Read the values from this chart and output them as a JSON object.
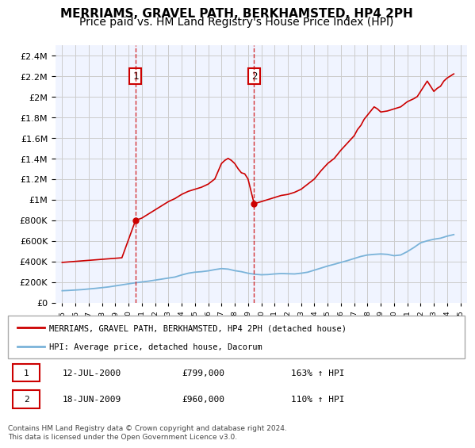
{
  "title": "MERRIAMS, GRAVEL PATH, BERKHAMSTED, HP4 2PH",
  "subtitle": "Price paid vs. HM Land Registry's House Price Index (HPI)",
  "title_fontsize": 11,
  "subtitle_fontsize": 10,
  "background_color": "#ffffff",
  "plot_bg_color": "#f0f4ff",
  "grid_color": "#cccccc",
  "red_line_color": "#cc0000",
  "blue_line_color": "#7ab3d9",
  "annotation_box_color": "#cc0000",
  "dashed_line_color": "#cc0000",
  "sale1_x": 2000.53,
  "sale1_y": 799000,
  "sale1_label": "1",
  "sale1_date": "12-JUL-2000",
  "sale1_price": "£799,000",
  "sale1_hpi": "163% ↑ HPI",
  "sale2_x": 2009.46,
  "sale2_y": 960000,
  "sale2_label": "2",
  "sale2_date": "18-JUN-2009",
  "sale2_price": "£960,000",
  "sale2_hpi": "110% ↑ HPI",
  "legend_line1": "MERRIAMS, GRAVEL PATH, BERKHAMSTED, HP4 2PH (detached house)",
  "legend_line2": "HPI: Average price, detached house, Dacorum",
  "footer": "Contains HM Land Registry data © Crown copyright and database right 2024.\nThis data is licensed under the Open Government Licence v3.0.",
  "ylim": [
    0,
    2500000
  ],
  "yticks": [
    0,
    200000,
    400000,
    600000,
    800000,
    1000000,
    1200000,
    1400000,
    1600000,
    1800000,
    2000000,
    2200000,
    2400000
  ],
  "xlim": [
    1994.5,
    2025.5
  ],
  "xticks": [
    1995,
    1996,
    1997,
    1998,
    1999,
    2000,
    2001,
    2002,
    2003,
    2004,
    2005,
    2006,
    2007,
    2008,
    2009,
    2010,
    2011,
    2012,
    2013,
    2014,
    2015,
    2016,
    2017,
    2018,
    2019,
    2020,
    2021,
    2022,
    2023,
    2024,
    2025
  ],
  "red_x": [
    1995,
    1995.5,
    1996,
    1996.5,
    1997,
    1997.5,
    1998,
    1998.5,
    1999,
    1999.5,
    2000.53,
    2001,
    2001.5,
    2002,
    2002.5,
    2003,
    2003.5,
    2004,
    2004.5,
    2005,
    2005.5,
    2006,
    2006.5,
    2007,
    2007.25,
    2007.5,
    2007.75,
    2008,
    2008.25,
    2008.5,
    2008.75,
    2009,
    2009.46,
    2010,
    2010.5,
    2011,
    2011.5,
    2012,
    2012.5,
    2013,
    2013.5,
    2014,
    2014.5,
    2015,
    2015.5,
    2016,
    2016.5,
    2017,
    2017.25,
    2017.5,
    2017.75,
    2018,
    2018.25,
    2018.5,
    2018.75,
    2019,
    2019.5,
    2020,
    2020.5,
    2021,
    2021.5,
    2021.75,
    2022,
    2022.25,
    2022.5,
    2022.75,
    2023,
    2023.25,
    2023.5,
    2023.75,
    2024,
    2024.25,
    2024.5
  ],
  "red_y": [
    390000,
    395000,
    400000,
    405000,
    410000,
    415000,
    420000,
    425000,
    430000,
    435000,
    799000,
    820000,
    860000,
    900000,
    940000,
    980000,
    1010000,
    1050000,
    1080000,
    1100000,
    1120000,
    1150000,
    1200000,
    1350000,
    1380000,
    1400000,
    1380000,
    1350000,
    1300000,
    1260000,
    1250000,
    1200000,
    960000,
    980000,
    1000000,
    1020000,
    1040000,
    1050000,
    1070000,
    1100000,
    1150000,
    1200000,
    1280000,
    1350000,
    1400000,
    1480000,
    1550000,
    1620000,
    1680000,
    1720000,
    1780000,
    1820000,
    1860000,
    1900000,
    1880000,
    1850000,
    1860000,
    1880000,
    1900000,
    1950000,
    1980000,
    2000000,
    2050000,
    2100000,
    2150000,
    2100000,
    2050000,
    2080000,
    2100000,
    2150000,
    2180000,
    2200000,
    2220000
  ],
  "blue_x": [
    1995,
    1995.5,
    1996,
    1996.5,
    1997,
    1997.5,
    1998,
    1998.5,
    1999,
    1999.5,
    2000,
    2000.5,
    2001,
    2001.5,
    2002,
    2002.5,
    2003,
    2003.5,
    2004,
    2004.5,
    2005,
    2005.5,
    2006,
    2006.5,
    2007,
    2007.5,
    2008,
    2008.5,
    2009,
    2009.5,
    2010,
    2010.5,
    2011,
    2011.5,
    2012,
    2012.5,
    2013,
    2013.5,
    2014,
    2014.5,
    2015,
    2015.5,
    2016,
    2016.5,
    2017,
    2017.5,
    2018,
    2018.5,
    2019,
    2019.5,
    2020,
    2020.5,
    2021,
    2021.5,
    2022,
    2022.5,
    2023,
    2023.5,
    2024,
    2024.5
  ],
  "blue_y": [
    115000,
    118000,
    122000,
    126000,
    132000,
    138000,
    145000,
    152000,
    162000,
    172000,
    182000,
    192000,
    200000,
    208000,
    218000,
    228000,
    238000,
    248000,
    268000,
    285000,
    295000,
    300000,
    308000,
    320000,
    330000,
    325000,
    310000,
    300000,
    285000,
    275000,
    270000,
    272000,
    278000,
    282000,
    280000,
    278000,
    285000,
    295000,
    315000,
    335000,
    355000,
    372000,
    390000,
    408000,
    428000,
    448000,
    462000,
    468000,
    472000,
    468000,
    455000,
    462000,
    495000,
    535000,
    580000,
    600000,
    615000,
    625000,
    645000,
    660000
  ]
}
